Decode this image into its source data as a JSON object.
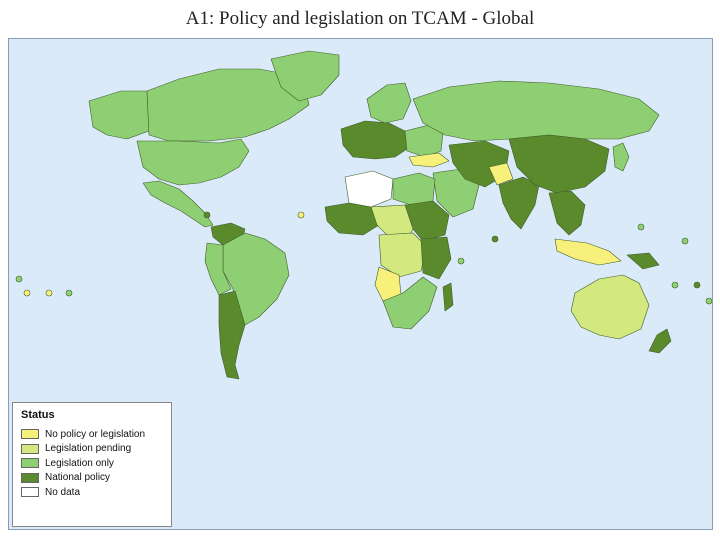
{
  "title": "A1: Policy and legislation on TCAM - Global",
  "legend": {
    "title": "Status",
    "items": [
      {
        "label": "No policy or legislation",
        "color": "#f7f07a"
      },
      {
        "label": "Legislation pending",
        "color": "#d3e87e"
      },
      {
        "label": "Legislation only",
        "color": "#8fcf73"
      },
      {
        "label": "National policy",
        "color": "#5a8a2c"
      },
      {
        "label": "No data",
        "color": "#ffffff"
      }
    ]
  },
  "colors": {
    "ocean": "#dbeaf9",
    "no_policy": "#f7f07a",
    "pending": "#d3e87e",
    "legislation_only": "#8fcf73",
    "national_policy": "#5a8a2c",
    "no_data": "#ffffff"
  }
}
